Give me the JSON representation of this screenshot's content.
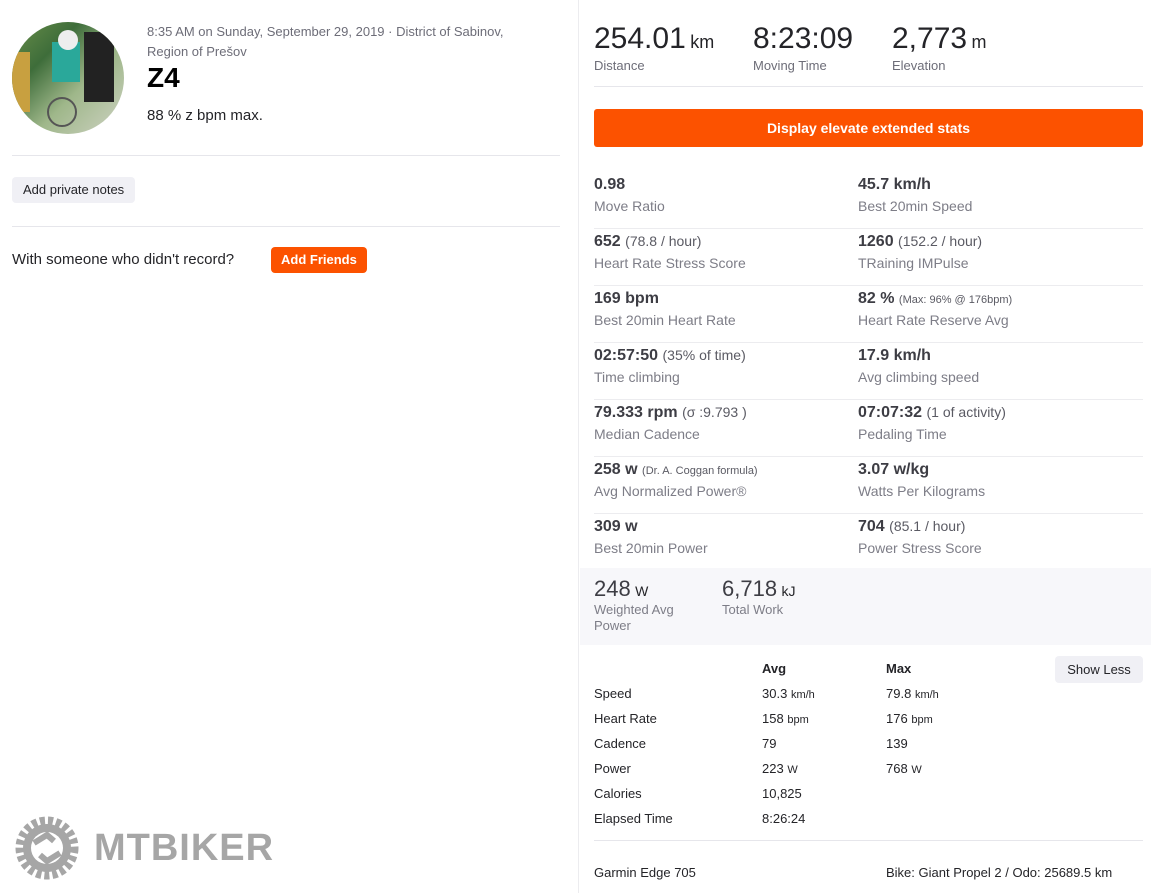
{
  "activity": {
    "meta": "8:35 AM on Sunday, September 29, 2019 · District of Sabinov, Region of Prešov",
    "title": "Z4",
    "description": "88 % z bpm max.",
    "notes_button": "Add private notes",
    "friends_question": "With someone who didn't record?",
    "friends_button": "Add Friends"
  },
  "logo": {
    "text": "MTBIKER"
  },
  "top_stats": [
    {
      "value": "254.01",
      "unit": "km",
      "label": "Distance"
    },
    {
      "value": "8:23:09",
      "unit": "",
      "label": "Moving Time"
    },
    {
      "value": "2,773",
      "unit": "m",
      "label": "Elevation"
    }
  ],
  "elevate_button": "Display elevate extended stats",
  "extended": [
    [
      {
        "value": "0.98",
        "extra": "",
        "label": "Move Ratio"
      },
      {
        "value": "45.7 km/h",
        "extra": "",
        "label": "Best 20min Speed"
      }
    ],
    [
      {
        "value": "652",
        "extra": "(78.8 / hour)",
        "label": "Heart Rate Stress Score"
      },
      {
        "value": "1260",
        "extra": "(152.2 / hour)",
        "label": "TRaining IMPulse"
      }
    ],
    [
      {
        "value": "169 bpm",
        "extra": "",
        "label": "Best 20min Heart Rate"
      },
      {
        "value": "82 %",
        "extra": "(Max: 96% @ 176bpm)",
        "label": "Heart Rate Reserve Avg"
      }
    ],
    [
      {
        "value": "02:57:50",
        "extra": "(35% of time)",
        "label": "Time climbing"
      },
      {
        "value": "17.9 km/h",
        "extra": "",
        "label": "Avg climbing speed"
      }
    ],
    [
      {
        "value": "79.333 rpm",
        "extra": "(σ :9.793 )",
        "label": "Median Cadence"
      },
      {
        "value": "07:07:32",
        "extra": "(1 of activity)",
        "label": "Pedaling Time"
      }
    ],
    [
      {
        "value": "258 w",
        "extra": "(Dr. A. Coggan formula)",
        "label": "Avg Normalized Power®"
      },
      {
        "value": "3.07 w/kg",
        "extra": "",
        "label": "Watts Per Kilograms"
      }
    ],
    [
      {
        "value": "309 w",
        "extra": "",
        "label": "Best 20min Power"
      },
      {
        "value": "704",
        "extra": "(85.1 / hour)",
        "label": "Power Stress Score"
      }
    ]
  ],
  "power_stats": [
    {
      "value": "248",
      "unit": "W",
      "label": "Weighted Avg Power"
    },
    {
      "value": "6,718",
      "unit": "kJ",
      "label": "Total Work"
    }
  ],
  "table": {
    "headers": [
      "",
      "Avg",
      "Max"
    ],
    "show_less": "Show Less",
    "rows": [
      {
        "label": "Speed",
        "avg": "30.3",
        "avg_unit": "km/h",
        "max": "79.8",
        "max_unit": "km/h"
      },
      {
        "label": "Heart Rate",
        "avg": "158",
        "avg_unit": "bpm",
        "max": "176",
        "max_unit": "bpm"
      },
      {
        "label": "Cadence",
        "avg": "79",
        "avg_unit": "",
        "max": "139",
        "max_unit": ""
      },
      {
        "label": "Power",
        "avg": "223",
        "avg_unit": "W",
        "max": "768",
        "max_unit": "W"
      },
      {
        "label": "Calories",
        "avg": "10,825",
        "avg_unit": "",
        "max": "",
        "max_unit": ""
      },
      {
        "label": "Elapsed Time",
        "avg": "8:26:24",
        "avg_unit": "",
        "max": "",
        "max_unit": ""
      }
    ]
  },
  "footer": {
    "device": "Garmin Edge 705",
    "bike": "Bike: Giant Propel 2 / Odo: 25689.5 km"
  },
  "colors": {
    "accent": "#fc5200"
  }
}
